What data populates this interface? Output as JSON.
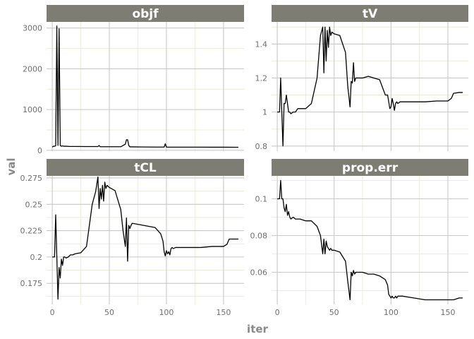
{
  "chart_data": {
    "type": "line",
    "xlabel": "iter",
    "ylabel": "val",
    "grid": true,
    "x_ticks": [
      0,
      50,
      100,
      150
    ],
    "xlim": [
      -5,
      168
    ],
    "colors": {
      "line": "#000000",
      "strip": "#7d7d73",
      "grid_major": "#c8c8c8",
      "grid_minor": "#ececdc"
    },
    "panels": [
      {
        "name": "objf",
        "ylim": [
          -20,
          3150
        ],
        "y_ticks": [
          0,
          1000,
          2000,
          3000
        ],
        "x": [
          0,
          1,
          2,
          3,
          4,
          5,
          6,
          7,
          8,
          9,
          10,
          12,
          15,
          20,
          30,
          40,
          41,
          42,
          50,
          60,
          64,
          65,
          66,
          67,
          68,
          70,
          80,
          90,
          98,
          99,
          100,
          101,
          110,
          120,
          130,
          140,
          150,
          160,
          163
        ],
        "y": [
          80,
          100,
          100,
          110,
          3050,
          120,
          2980,
          120,
          100,
          110,
          100,
          100,
          95,
          95,
          92,
          92,
          120,
          88,
          88,
          88,
          150,
          260,
          260,
          120,
          85,
          85,
          82,
          80,
          80,
          160,
          80,
          78,
          78,
          77,
          77,
          76,
          76,
          75,
          75
        ]
      },
      {
        "name": "tV",
        "ylim": [
          0.77,
          1.53
        ],
        "y_ticks": [
          0.8,
          1.0,
          1.2,
          1.4
        ],
        "x": [
          0,
          2,
          3,
          4,
          5,
          6,
          7,
          8,
          9,
          10,
          11,
          12,
          14,
          16,
          18,
          20,
          25,
          30,
          35,
          38,
          40,
          41,
          42,
          43,
          44,
          45,
          46,
          47,
          48,
          50,
          55,
          60,
          62,
          64,
          65,
          66,
          67,
          68,
          69,
          70,
          75,
          80,
          85,
          90,
          95,
          97,
          98,
          99,
          100,
          101,
          102,
          103,
          104,
          105,
          106,
          108,
          110,
          120,
          130,
          140,
          150,
          153,
          155,
          160,
          163
        ],
        "y": [
          1.0,
          1.0,
          1.2,
          1.0,
          0.8,
          1.05,
          1.05,
          1.1,
          1.05,
          1.0,
          1.0,
          0.99,
          1.0,
          1.0,
          1.02,
          1.02,
          1.02,
          1.05,
          1.2,
          1.45,
          1.5,
          1.23,
          1.5,
          1.3,
          1.48,
          1.38,
          1.5,
          1.45,
          1.47,
          1.46,
          1.45,
          1.35,
          1.15,
          1.03,
          1.18,
          1.17,
          1.29,
          1.18,
          1.2,
          1.2,
          1.2,
          1.21,
          1.2,
          1.19,
          1.1,
          1.1,
          1.06,
          1.02,
          1.03,
          1.08,
          1.05,
          1.01,
          1.05,
          1.06,
          1.05,
          1.06,
          1.06,
          1.06,
          1.06,
          1.065,
          1.065,
          1.08,
          1.11,
          1.115,
          1.115
        ]
      },
      {
        "name": "tCL",
        "ylim": [
          0.155,
          0.277
        ],
        "y_ticks": [
          0.175,
          0.2,
          0.225,
          0.25,
          0.275
        ],
        "x": [
          0,
          2,
          3,
          4,
          5,
          6,
          7,
          8,
          9,
          10,
          11,
          12,
          14,
          16,
          18,
          20,
          25,
          30,
          35,
          38,
          40,
          41,
          42,
          43,
          44,
          45,
          46,
          47,
          48,
          50,
          55,
          60,
          62,
          64,
          65,
          66,
          67,
          68,
          69,
          70,
          75,
          80,
          85,
          90,
          95,
          97,
          98,
          99,
          100,
          101,
          102,
          103,
          104,
          105,
          106,
          108,
          110,
          120,
          130,
          140,
          150,
          153,
          155,
          160,
          163
        ],
        "y": [
          0.2,
          0.2,
          0.24,
          0.2,
          0.16,
          0.19,
          0.18,
          0.198,
          0.192,
          0.2,
          0.2,
          0.199,
          0.2,
          0.202,
          0.202,
          0.203,
          0.204,
          0.21,
          0.25,
          0.262,
          0.276,
          0.246,
          0.265,
          0.255,
          0.268,
          0.253,
          0.271,
          0.265,
          0.268,
          0.266,
          0.263,
          0.245,
          0.225,
          0.21,
          0.237,
          0.196,
          0.23,
          0.227,
          0.23,
          0.232,
          0.231,
          0.23,
          0.229,
          0.228,
          0.222,
          0.215,
          0.205,
          0.201,
          0.206,
          0.203,
          0.205,
          0.202,
          0.208,
          0.209,
          0.208,
          0.209,
          0.209,
          0.209,
          0.209,
          0.21,
          0.21,
          0.212,
          0.217,
          0.217,
          0.217
        ]
      },
      {
        "name": "prop.err",
        "ylim": [
          0.0425,
          0.1125
        ],
        "y_ticks": [
          0.06,
          0.08,
          0.1
        ],
        "x": [
          0,
          2,
          3,
          4,
          5,
          6,
          7,
          8,
          9,
          10,
          11,
          12,
          14,
          16,
          18,
          20,
          25,
          30,
          35,
          38,
          40,
          41,
          42,
          43,
          44,
          45,
          46,
          47,
          48,
          50,
          55,
          60,
          62,
          64,
          65,
          66,
          67,
          68,
          69,
          70,
          75,
          80,
          85,
          90,
          95,
          97,
          98,
          99,
          100,
          101,
          102,
          103,
          104,
          105,
          106,
          108,
          110,
          120,
          130,
          140,
          150,
          153,
          155,
          160,
          163
        ],
        "y": [
          0.1,
          0.1,
          0.11,
          0.1,
          0.1,
          0.095,
          0.093,
          0.097,
          0.091,
          0.093,
          0.09,
          0.089,
          0.09,
          0.089,
          0.089,
          0.089,
          0.088,
          0.088,
          0.085,
          0.08,
          0.07,
          0.078,
          0.07,
          0.077,
          0.074,
          0.073,
          0.072,
          0.073,
          0.072,
          0.072,
          0.071,
          0.066,
          0.055,
          0.045,
          0.06,
          0.058,
          0.061,
          0.059,
          0.06,
          0.06,
          0.06,
          0.059,
          0.059,
          0.058,
          0.056,
          0.053,
          0.048,
          0.047,
          0.046,
          0.047,
          0.046,
          0.046,
          0.047,
          0.046,
          0.047,
          0.047,
          0.047,
          0.046,
          0.045,
          0.045,
          0.045,
          0.045,
          0.045,
          0.046,
          0.046
        ]
      }
    ]
  }
}
